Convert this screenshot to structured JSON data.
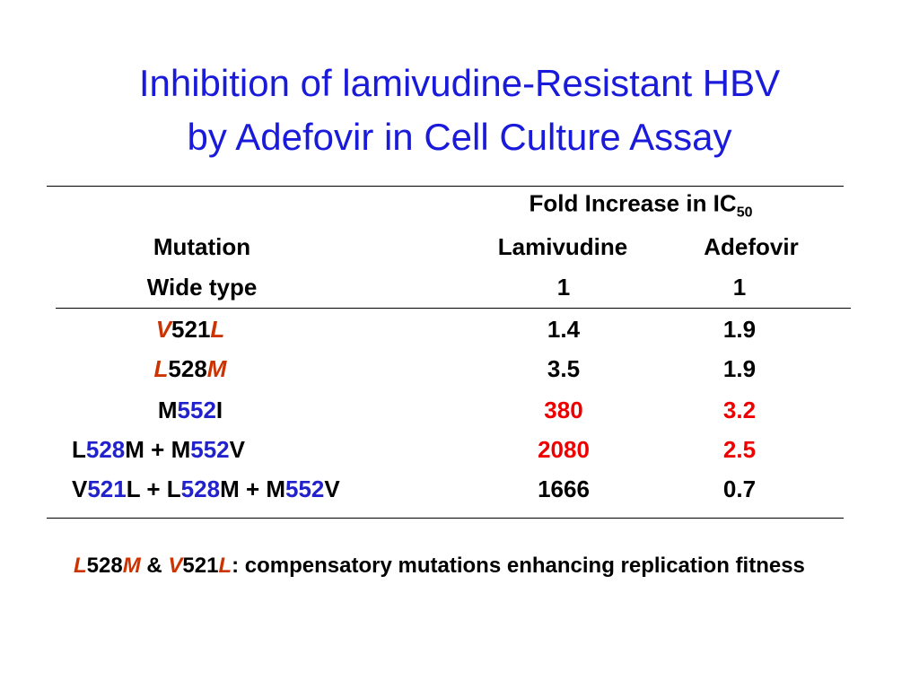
{
  "title": [
    "Inhibition of lamivudine-Resistant HBV",
    "by Adefovir in Cell Culture Assay"
  ],
  "table": {
    "group_header": {
      "text": "Fold Increase in IC",
      "subscript": "50"
    },
    "columns": [
      "Mutation",
      "Lamivudine",
      "Adefovir"
    ],
    "rows": [
      {
        "mutation": [
          {
            "text": "Wide type"
          }
        ],
        "lamivudine": {
          "text": "1"
        },
        "adefovir": {
          "text": "1"
        }
      },
      {
        "mutation": [
          {
            "text": "V",
            "color": "#cc3300",
            "italic": true
          },
          {
            "text": "521"
          },
          {
            "text": "L",
            "color": "#cc3300",
            "italic": true
          }
        ],
        "lamivudine": {
          "text": "1.4"
        },
        "adefovir": {
          "text": "1.9"
        }
      },
      {
        "mutation": [
          {
            "text": "L",
            "color": "#cc3300",
            "italic": true
          },
          {
            "text": "528"
          },
          {
            "text": "M",
            "color": "#cc3300",
            "italic": true
          }
        ],
        "lamivudine": {
          "text": "3.5"
        },
        "adefovir": {
          "text": "1.9"
        }
      },
      {
        "mutation": [
          {
            "text": "M"
          },
          {
            "text": "552",
            "color": "#2222cc"
          },
          {
            "text": "I"
          }
        ],
        "lamivudine": {
          "text": "380",
          "color": "#ee0000"
        },
        "adefovir": {
          "text": "3.2",
          "color": "#ee0000"
        }
      },
      {
        "mutation": [
          {
            "text": "L"
          },
          {
            "text": "528",
            "color": "#2222cc"
          },
          {
            "text": "M + M"
          },
          {
            "text": "552",
            "color": "#2222cc"
          },
          {
            "text": "V"
          }
        ],
        "lamivudine": {
          "text": "2080",
          "color": "#ee0000"
        },
        "adefovir": {
          "text": "2.5",
          "color": "#ee0000"
        }
      },
      {
        "mutation": [
          {
            "text": "V"
          },
          {
            "text": "521",
            "color": "#2222cc"
          },
          {
            "text": "L + L"
          },
          {
            "text": "528",
            "color": "#2222cc"
          },
          {
            "text": "M + M"
          },
          {
            "text": "552",
            "color": "#2222cc"
          },
          {
            "text": "V"
          }
        ],
        "lamivudine": {
          "text": "1666"
        },
        "adefovir": {
          "text": "0.7"
        }
      }
    ]
  },
  "footnote": [
    {
      "text": "L",
      "color": "#cc3300",
      "italic": true
    },
    {
      "text": "528"
    },
    {
      "text": "M",
      "color": "#cc3300",
      "italic": true
    },
    {
      "text": " & "
    },
    {
      "text": "V",
      "color": "#cc3300",
      "italic": true
    },
    {
      "text": "521"
    },
    {
      "text": "L",
      "color": "#cc3300",
      "italic": true
    },
    {
      "text": ": compensatory mutations enhancing replication fitness"
    }
  ]
}
